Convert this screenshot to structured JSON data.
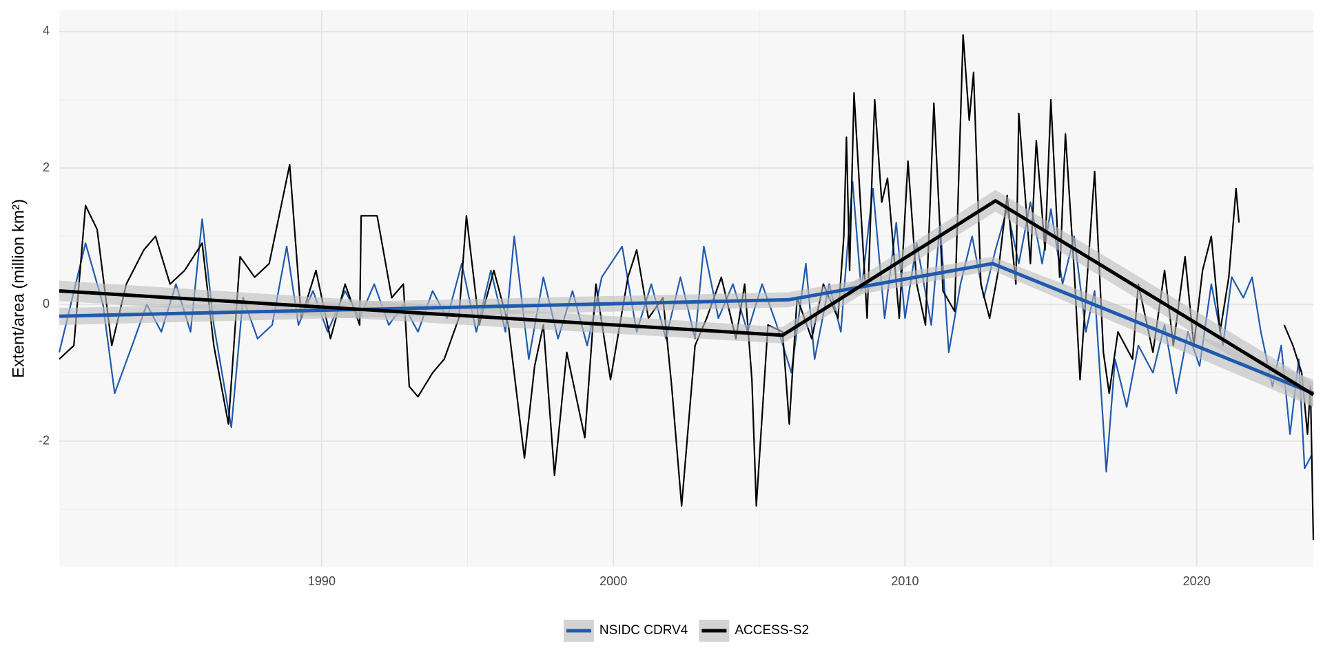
{
  "chart_data": {
    "type": "line",
    "y_label": "Extent/area (million km²)",
    "xlim": [
      1981,
      2024
    ],
    "ylim": [
      -3.84,
      4.31
    ],
    "xticks": [
      1990,
      2000,
      2010,
      2020
    ],
    "yticks": [
      -2,
      0,
      2,
      4
    ],
    "x_minor": [
      1985,
      1995,
      2005,
      2015
    ],
    "y_minor": [
      -3,
      -1,
      1,
      3
    ],
    "grid": true,
    "legend": "bottom",
    "series": [
      {
        "name": "NSIDC CDRV4",
        "color": "#1f5aad",
        "x": [
          1981.0,
          1981.9,
          1982.5,
          1982.9,
          1983.5,
          1984.0,
          1984.5,
          1985.0,
          1985.5,
          1985.9,
          1986.3,
          1986.9,
          1987.3,
          1987.8,
          1988.3,
          1988.8,
          1989.2,
          1989.7,
          1990.2,
          1990.8,
          1991.3,
          1991.8,
          1992.3,
          1992.8,
          1993.3,
          1993.8,
          1994.3,
          1994.8,
          1995.3,
          1995.8,
          1996.3,
          1996.6,
          1997.1,
          1997.6,
          1998.1,
          1998.6,
          1999.1,
          1999.6,
          2000.3,
          2000.8,
          2001.3,
          2001.8,
          2002.3,
          2002.8,
          2003.1,
          2003.6,
          2004.1,
          2004.6,
          2005.1,
          2005.6,
          2006.1,
          2006.6,
          2006.9,
          2007.4,
          2007.8,
          2008.2,
          2008.5,
          2008.9,
          2009.3,
          2009.7,
          2010.0,
          2010.4,
          2010.9,
          2011.2,
          2011.5,
          2011.9,
          2012.3,
          2012.7,
          2013.1,
          2013.5,
          2013.9,
          2014.3,
          2014.7,
          2015.0,
          2015.4,
          2015.8,
          2016.2,
          2016.5,
          2016.9,
          2017.2,
          2017.6,
          2018.0,
          2018.5,
          2018.9,
          2019.3,
          2019.7,
          2020.1,
          2020.5,
          2020.9,
          2021.2,
          2021.6,
          2021.9,
          2022.2,
          2022.6,
          2022.9,
          2023.2,
          2023.5,
          2023.7,
          2023.95
        ],
        "values": [
          -0.7,
          0.9,
          0.0,
          -1.3,
          -0.6,
          0.0,
          -0.4,
          0.3,
          -0.4,
          1.25,
          -0.3,
          -1.8,
          0.1,
          -0.5,
          -0.3,
          0.85,
          -0.3,
          0.2,
          -0.4,
          0.2,
          -0.2,
          0.3,
          -0.3,
          0.0,
          -0.4,
          0.2,
          -0.2,
          0.6,
          -0.4,
          0.5,
          -0.4,
          1.0,
          -0.8,
          0.4,
          -0.5,
          0.2,
          -0.6,
          0.4,
          0.85,
          -0.4,
          0.3,
          -0.5,
          0.4,
          -0.5,
          0.85,
          -0.2,
          0.3,
          -0.4,
          0.3,
          -0.3,
          -1.0,
          0.6,
          -0.8,
          0.3,
          -0.4,
          1.8,
          0.2,
          1.7,
          -0.2,
          1.2,
          -0.2,
          0.9,
          -0.3,
          1.2,
          -0.7,
          0.3,
          1.0,
          0.1,
          0.8,
          1.4,
          0.6,
          1.5,
          0.6,
          1.4,
          0.3,
          1.0,
          -0.4,
          0.2,
          -2.45,
          -0.8,
          -1.5,
          -0.6,
          -1.0,
          -0.3,
          -1.3,
          -0.4,
          -0.9,
          0.3,
          -0.6,
          0.4,
          0.1,
          0.4,
          -0.4,
          -1.2,
          -0.6,
          -1.9,
          -0.8,
          -2.4,
          -2.2
        ]
      },
      {
        "name": "ACCESS-S2",
        "color": "#000000",
        "x": [
          1981.0,
          1981.5,
          1981.9,
          1982.3,
          1982.8,
          1983.3,
          1983.9,
          1984.3,
          1984.8,
          1985.3,
          1985.9,
          1986.3,
          1986.8,
          1987.2,
          1987.7,
          1988.2,
          1988.9,
          1989.3,
          1989.8,
          1990.3,
          1990.8,
          1991.3,
          1991.35,
          1991.9,
          1992.4,
          1992.8,
          1993.0,
          1993.3,
          1993.8,
          1994.2,
          1994.7,
          1994.96,
          1995.4,
          1995.9,
          1996.4,
          1996.95,
          1997.3,
          1997.6,
          1997.98,
          1998.4,
          1999.02,
          1999.4,
          1999.9,
          2000.5,
          2000.8,
          2001.2,
          2001.7,
          2002.0,
          2002.34,
          2002.8,
          2003.2,
          2003.7,
          2004.2,
          2004.5,
          2004.75,
          2004.9,
          2005.3,
          2005.8,
          2006.03,
          2006.3,
          2006.8,
          2007.2,
          2007.7,
          2007.9,
          2007.99,
          2008.1,
          2008.25,
          2008.7,
          2008.96,
          2009.2,
          2009.4,
          2009.8,
          2010.1,
          2010.4,
          2010.7,
          2010.99,
          2011.3,
          2011.7,
          2011.99,
          2012.2,
          2012.35,
          2012.6,
          2012.9,
          2013.2,
          2013.5,
          2013.8,
          2013.9,
          2014.3,
          2014.5,
          2014.8,
          2015.0,
          2015.3,
          2015.5,
          2015.8,
          2016.0,
          2016.5,
          2016.8,
          2017.0,
          2017.3,
          2017.8,
          2018.0,
          2018.5,
          2018.9,
          2019.2,
          2019.6,
          2019.9,
          2020.2,
          2020.5,
          2020.8,
          2021.1,
          2021.35,
          2021.45,
          2022.2,
          2023.0,
          2023.3,
          2023.6,
          2023.8,
          2023.9,
          2024.0
        ],
        "values": [
          -0.8,
          -0.6,
          1.45,
          1.1,
          -0.6,
          0.3,
          0.8,
          1.0,
          0.3,
          0.5,
          0.9,
          -0.6,
          -1.75,
          0.7,
          0.4,
          0.6,
          2.05,
          -0.2,
          0.5,
          -0.5,
          0.3,
          -0.3,
          1.3,
          1.3,
          0.1,
          0.3,
          -1.2,
          -1.35,
          -1.0,
          -0.8,
          -0.2,
          1.3,
          -0.3,
          0.5,
          -0.3,
          -2.25,
          -0.9,
          -0.3,
          -2.5,
          -0.7,
          -1.95,
          0.3,
          -1.1,
          0.4,
          0.8,
          -0.2,
          0.1,
          -1.2,
          -2.95,
          -0.6,
          -0.2,
          0.4,
          -0.5,
          0.3,
          -1.1,
          -2.95,
          -0.3,
          -0.4,
          -1.75,
          0.1,
          -0.5,
          0.3,
          -0.2,
          1.0,
          2.45,
          0.5,
          3.1,
          -0.2,
          3.0,
          1.5,
          1.85,
          -0.2,
          2.1,
          0.3,
          -0.3,
          2.95,
          0.2,
          -0.1,
          3.95,
          2.7,
          3.4,
          0.3,
          -0.2,
          0.5,
          1.6,
          0.3,
          2.8,
          0.6,
          2.4,
          0.8,
          3.0,
          0.4,
          2.5,
          0.5,
          -1.1,
          1.95,
          -0.7,
          -1.3,
          -0.4,
          -0.8,
          0.3,
          -0.7,
          0.5,
          -0.6,
          0.7,
          -0.6,
          0.5,
          1.0,
          -0.4,
          0.4,
          1.7,
          1.2,
          null,
          -0.3,
          -0.6,
          -1.0,
          -1.9,
          -1.2,
          -3.45
        ]
      }
    ],
    "trend": [
      {
        "color": "#1f5aad",
        "x": [
          1981,
          2006,
          2013,
          2024
        ],
        "values": [
          -0.17,
          0.07,
          0.6,
          -1.3
        ],
        "lower": [
          -0.3,
          -0.04,
          0.5,
          -1.5
        ],
        "upper": [
          -0.05,
          0.18,
          0.7,
          -1.1
        ]
      },
      {
        "color": "#000000",
        "x": [
          1981,
          2005.8,
          2013.1,
          2024
        ],
        "values": [
          0.2,
          -0.45,
          1.52,
          -1.32
        ],
        "lower": [
          0.05,
          -0.57,
          1.36,
          -1.5
        ],
        "upper": [
          0.35,
          -0.33,
          1.68,
          -1.14
        ]
      }
    ]
  }
}
